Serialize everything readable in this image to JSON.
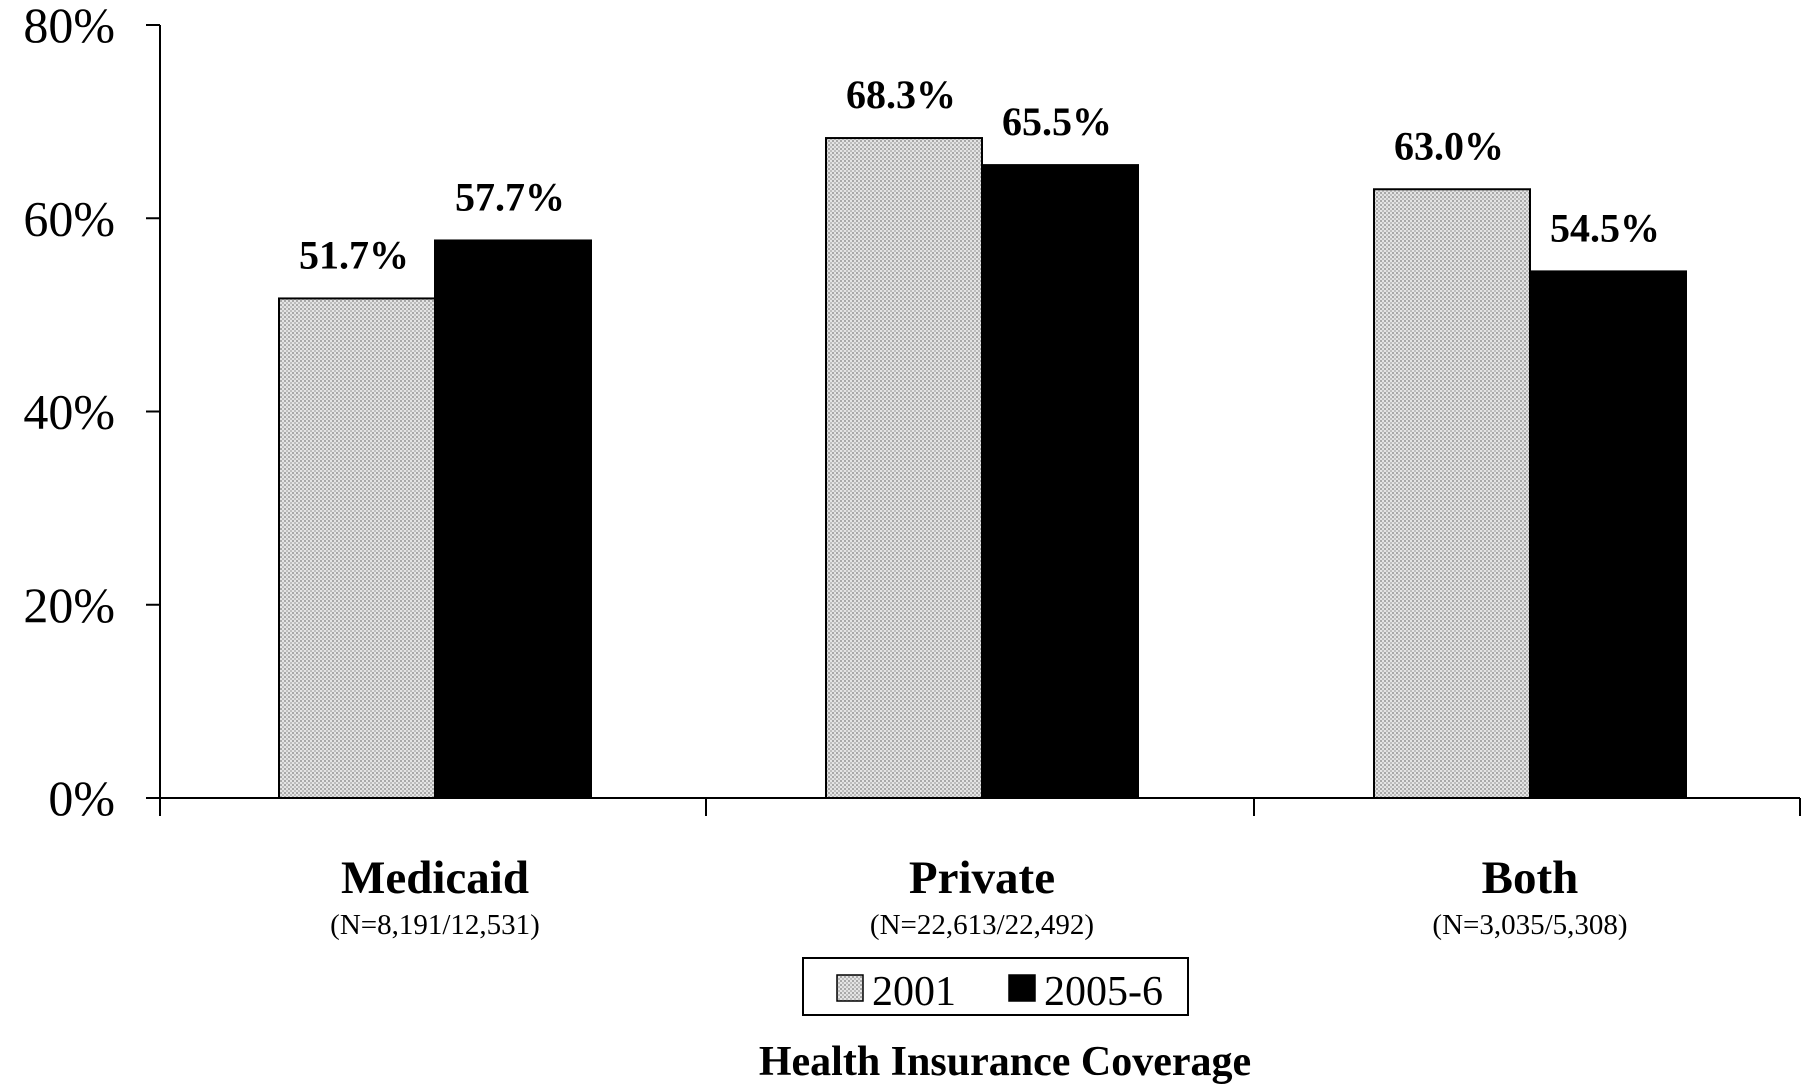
{
  "chart_data": {
    "type": "bar",
    "title": "",
    "xlabel": "Health Insurance Coverage",
    "ylabel": "",
    "ylim": [
      0,
      80
    ],
    "yticks": [
      "0%",
      "20%",
      "40%",
      "60%",
      "80%"
    ],
    "ytick_values": [
      0,
      20,
      40,
      60,
      80
    ],
    "categories": [
      "Medicaid",
      "Private",
      "Both"
    ],
    "category_sublabels": [
      "(N=8,191/12,531)",
      "(N=22,613/22,492)",
      "(N=3,035/5,308)"
    ],
    "series": [
      {
        "name": "2001",
        "color": "#d0d0d0",
        "pattern": "dotted-gray",
        "values": [
          51.7,
          68.3,
          63.0
        ],
        "labels": [
          "51.7%",
          "68.3%",
          "63.0%"
        ]
      },
      {
        "name": "2005-6",
        "color": "#000000",
        "pattern": "solid",
        "values": [
          57.7,
          65.5,
          54.5
        ],
        "labels": [
          "57.7%",
          "65.5%",
          "54.5%"
        ]
      }
    ],
    "legend_position": "bottom-center",
    "grid": false
  }
}
